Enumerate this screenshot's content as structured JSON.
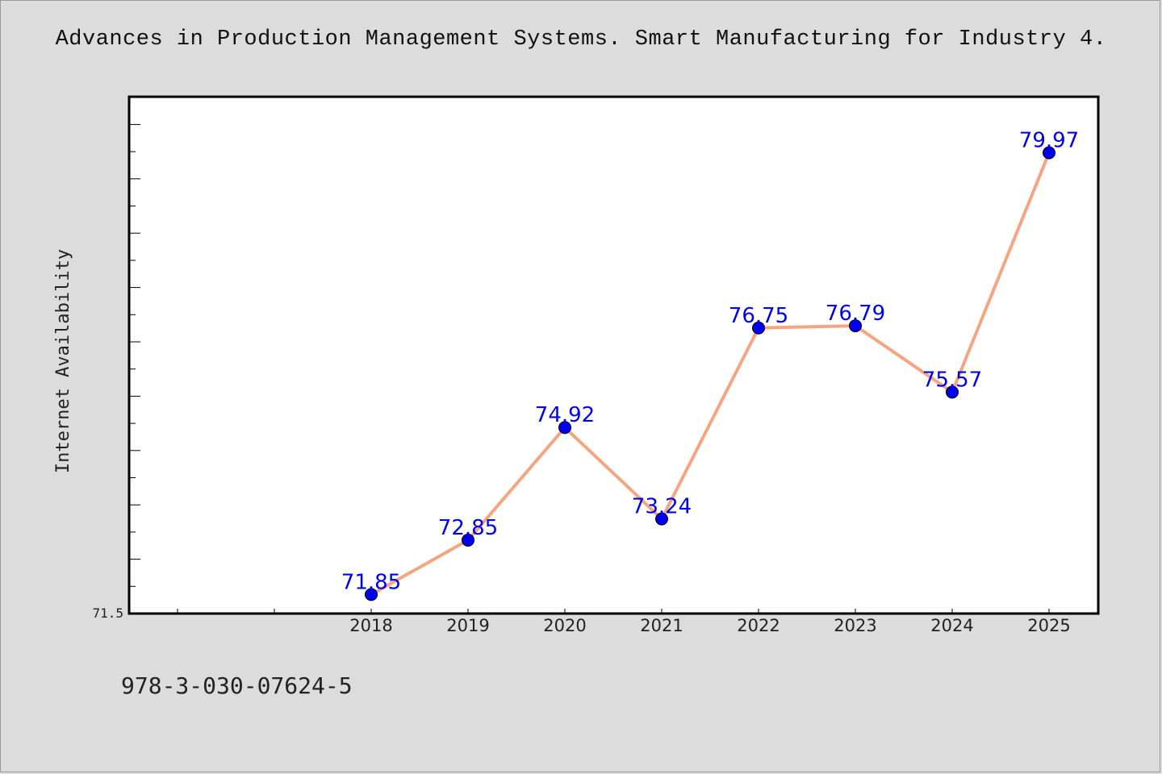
{
  "title": "Advances in Production Management Systems. Smart Manufacturing for Industry 4.",
  "footer": "978-3-030-07624-5",
  "colors": {
    "background": "#dcdcdc",
    "plot_bg": "#ffffff",
    "line": "#f4a582",
    "marker": "#0000ee",
    "label": "#0000ee"
  },
  "chart_data": {
    "type": "line",
    "title": "Advances in Production Management Systems. Smart Manufacturing for Industry 4.",
    "xlabel": "",
    "ylabel": "Internet Availability",
    "categories": [
      "2018",
      "2019",
      "2020",
      "2021",
      "2022",
      "2023",
      "2024",
      "2025"
    ],
    "series": [
      {
        "values": [
          71.85,
          72.85,
          74.92,
          73.24,
          76.75,
          76.79,
          75.57,
          79.97
        ]
      }
    ],
    "data_labels": [
      "71.85",
      "72.85",
      "74.92",
      "73.24",
      "76.75",
      "76.79",
      "75.57",
      "79.97"
    ],
    "ytick_labels": [
      "71.5"
    ],
    "ylim": [
      71.5,
      81.0
    ],
    "grid": false,
    "legend": "none"
  }
}
